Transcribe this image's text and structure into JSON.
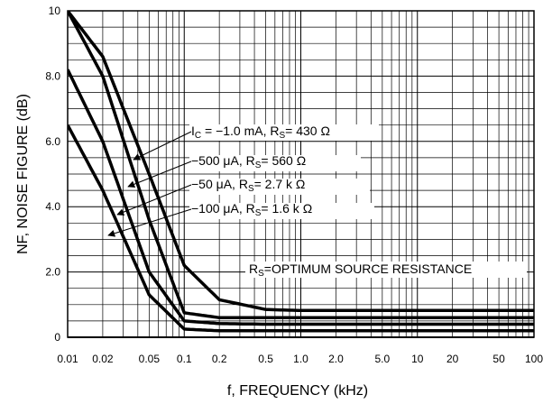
{
  "chart_data": {
    "type": "line",
    "title": "",
    "xlabel": "f, FREQUENCY (kHz)",
    "ylabel": "NF, NOISE FIGURE (dB)",
    "x_scale": "log",
    "xlim": [
      0.01,
      100
    ],
    "ylim": [
      0,
      10
    ],
    "grid": true,
    "x_tick_labels": [
      "0.01",
      "0.02",
      "0.05",
      "0.1",
      "0.2",
      "0.5",
      "1.0",
      "2.0",
      "5.0",
      "10",
      "20",
      "50",
      "100"
    ],
    "y_tick_labels": [
      "0",
      "2.0",
      "4.0",
      "6.0",
      "8.0",
      "10"
    ],
    "series": [
      {
        "name": "I C = -1.0 mA, R S= 430 Ω",
        "x": [
          0.01,
          0.02,
          0.05,
          0.1,
          0.2,
          0.5,
          1,
          2,
          5,
          10,
          20,
          50,
          100
        ],
        "y": [
          10,
          8.6,
          5.0,
          2.2,
          1.15,
          0.85,
          0.82,
          0.82,
          0.82,
          0.82,
          0.82,
          0.82,
          0.82
        ]
      },
      {
        "name": "-500 μA, R S= 560 Ω",
        "x": [
          0.01,
          0.02,
          0.05,
          0.1,
          0.2,
          0.5,
          1,
          2,
          5,
          10,
          20,
          50,
          100
        ],
        "y": [
          10,
          8.0,
          3.6,
          0.75,
          0.6,
          0.6,
          0.6,
          0.6,
          0.6,
          0.6,
          0.6,
          0.6,
          0.6
        ]
      },
      {
        "name": "-50 μA, R S= 2.7 k Ω",
        "x": [
          0.01,
          0.02,
          0.05,
          0.1,
          0.2,
          0.5,
          1,
          2,
          5,
          10,
          20,
          50,
          100
        ],
        "y": [
          8.2,
          6.0,
          2.0,
          0.5,
          0.42,
          0.4,
          0.4,
          0.4,
          0.4,
          0.4,
          0.4,
          0.4,
          0.4
        ]
      },
      {
        "name": "-100 μA, R S= 1.6 k Ω",
        "x": [
          0.01,
          0.02,
          0.05,
          0.1,
          0.2,
          0.5,
          1,
          2,
          5,
          10,
          20,
          50,
          100
        ],
        "y": [
          6.5,
          4.5,
          1.3,
          0.25,
          0.2,
          0.2,
          0.2,
          0.2,
          0.2,
          0.2,
          0.2,
          0.2,
          0.2
        ]
      }
    ],
    "annotations": [
      {
        "main": "I",
        "sub": "C",
        "rest": " = −1.0 mA, R",
        "sub2": "S",
        "tail": "= 430 Ω"
      },
      {
        "main": "−500 μA, R",
        "sub": "S",
        "rest": "= 560 Ω"
      },
      {
        "main": "−50 μA, R",
        "sub": "S",
        "rest": "= 2.7 k Ω"
      },
      {
        "main": "−100 μA, R",
        "sub": "S",
        "rest": "= 1.6 k Ω"
      },
      {
        "main": "R",
        "sub": "S",
        "rest": "=OPTIMUM SOURCE RESISTANCE"
      }
    ],
    "colors": {
      "line": "#000000",
      "grid": "#000000",
      "background": "#ffffff"
    }
  }
}
